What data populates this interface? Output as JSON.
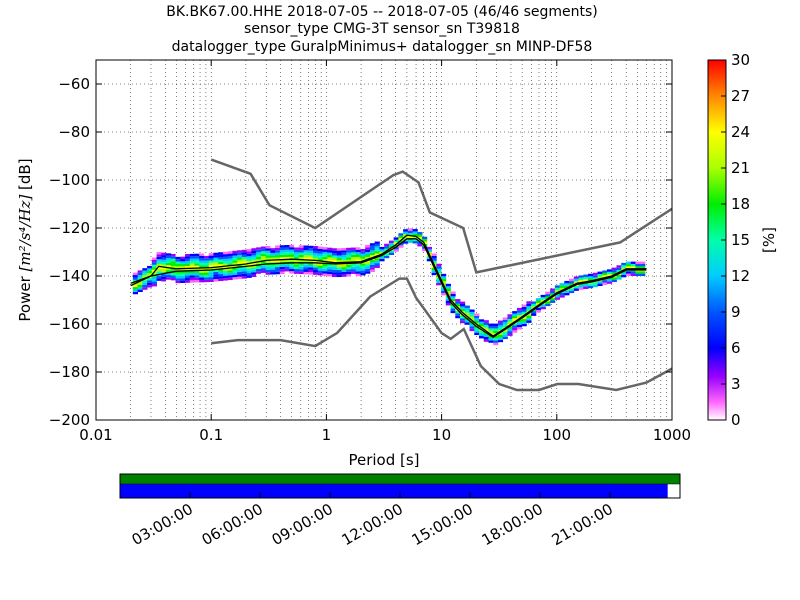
{
  "chart_data": {
    "type": "heatmap",
    "title_lines": [
      "BK.BK67.00.HHE   2018-07-05 -- 2018-07-05  (46/46 segments)",
      "sensor_type CMG-3T sensor_sn T39818",
      "datalogger_type GuralpMinimus+ datalogger_sn MINP-DF58"
    ],
    "xlabel": "Period [s]",
    "ylabel_prefix": "Power ",
    "ylabel_math": "[m²/s⁴/Hz]",
    "ylabel_suffix": " [dB]",
    "x_scale": "log",
    "xlim": [
      0.01,
      1000
    ],
    "ylim": [
      -200,
      -50
    ],
    "x_ticks": [
      0.01,
      0.1,
      1,
      10,
      100,
      1000
    ],
    "x_tick_labels": [
      "0.01",
      "0.1",
      "1",
      "10",
      "100",
      "1000"
    ],
    "y_ticks": [
      -200,
      -180,
      -160,
      -140,
      -120,
      -100,
      -80,
      -60
    ],
    "y_tick_labels": [
      "−200",
      "−180",
      "−160",
      "−140",
      "−120",
      "−100",
      "−80",
      "−60"
    ],
    "grid": true,
    "colorbar": {
      "label": "[%]",
      "range": [
        0,
        30
      ],
      "ticks": [
        "0",
        "3",
        "6",
        "9",
        "12",
        "15",
        "18",
        "21",
        "24",
        "27",
        "30"
      ]
    },
    "nlnm": [
      [
        0.1,
        -168
      ],
      [
        0.17,
        -166.7
      ],
      [
        0.4,
        -166.7
      ],
      [
        0.8,
        -169.2
      ],
      [
        1.24,
        -163.7
      ],
      [
        2.4,
        -148.6
      ],
      [
        4.3,
        -141.1
      ],
      [
        5,
        -141.1
      ],
      [
        6,
        -149
      ],
      [
        10,
        -163.8
      ],
      [
        12,
        -166.2
      ],
      [
        15.6,
        -162.1
      ],
      [
        21.9,
        -177.5
      ],
      [
        31.6,
        -185
      ],
      [
        45,
        -187.5
      ],
      [
        70,
        -187.5
      ],
      [
        101,
        -185
      ],
      [
        154,
        -185
      ],
      [
        328,
        -187.5
      ],
      [
        600,
        -184.4
      ],
      [
        1000,
        -178.6
      ]
    ],
    "nhnm": [
      [
        0.1,
        -91.5
      ],
      [
        0.22,
        -97.4
      ],
      [
        0.32,
        -110.5
      ],
      [
        0.8,
        -120
      ],
      [
        3.8,
        -98
      ],
      [
        4.6,
        -96.5
      ],
      [
        6.3,
        -101
      ],
      [
        7.9,
        -113.5
      ],
      [
        15.4,
        -120
      ],
      [
        20,
        -138.5
      ],
      [
        354.8,
        -126
      ],
      [
        1000,
        -112
      ]
    ],
    "mode_curve": [
      [
        0.02,
        -144
      ],
      [
        0.03,
        -140
      ],
      [
        0.035,
        -136
      ],
      [
        0.05,
        -137
      ],
      [
        0.1,
        -136.5
      ],
      [
        0.2,
        -135
      ],
      [
        0.3,
        -133.5
      ],
      [
        0.5,
        -133
      ],
      [
        0.8,
        -133.5
      ],
      [
        1.2,
        -134.5
      ],
      [
        2,
        -134
      ],
      [
        3,
        -131
      ],
      [
        4,
        -127
      ],
      [
        5,
        -123
      ],
      [
        6,
        -123.5
      ],
      [
        7,
        -126
      ],
      [
        8,
        -132
      ],
      [
        10,
        -142
      ],
      [
        12,
        -150
      ],
      [
        15,
        -155
      ],
      [
        20,
        -160
      ],
      [
        28,
        -165
      ],
      [
        35,
        -162
      ],
      [
        50,
        -157
      ],
      [
        70,
        -152
      ],
      [
        100,
        -147
      ],
      [
        150,
        -143
      ],
      [
        200,
        -142
      ],
      [
        300,
        -140
      ],
      [
        400,
        -137
      ],
      [
        600,
        -137
      ]
    ],
    "mean_curve": [
      [
        0.02,
        -143
      ],
      [
        0.03,
        -140
      ],
      [
        0.05,
        -138
      ],
      [
        0.1,
        -137.5
      ],
      [
        0.2,
        -136
      ],
      [
        0.3,
        -135
      ],
      [
        0.5,
        -134.5
      ],
      [
        0.8,
        -134.5
      ],
      [
        1.2,
        -135
      ],
      [
        2,
        -134.5
      ],
      [
        3,
        -131.5
      ],
      [
        4,
        -128
      ],
      [
        5,
        -124.5
      ],
      [
        6,
        -124.5
      ],
      [
        7,
        -127
      ],
      [
        8,
        -133
      ],
      [
        10,
        -143
      ],
      [
        12,
        -151
      ],
      [
        15,
        -156
      ],
      [
        20,
        -161
      ],
      [
        28,
        -165.5
      ],
      [
        35,
        -162.5
      ],
      [
        50,
        -157.5
      ],
      [
        70,
        -152.5
      ],
      [
        100,
        -147.5
      ],
      [
        150,
        -143.5
      ],
      [
        200,
        -142.5
      ],
      [
        300,
        -140.5
      ],
      [
        400,
        -137.5
      ],
      [
        600,
        -137.5
      ]
    ],
    "timeline": {
      "tick_labels": [
        "03:00:00",
        "06:00:00",
        "09:00:00",
        "12:00:00",
        "15:00:00",
        "18:00:00",
        "21:00:00"
      ],
      "tick_hours": [
        3,
        6,
        9,
        12,
        15,
        18,
        21
      ],
      "span_hours": 24,
      "data_coverage": 1.0,
      "psd_coverage": 0.978,
      "data_color": "#008000",
      "psd_color": "#0000ff"
    }
  }
}
